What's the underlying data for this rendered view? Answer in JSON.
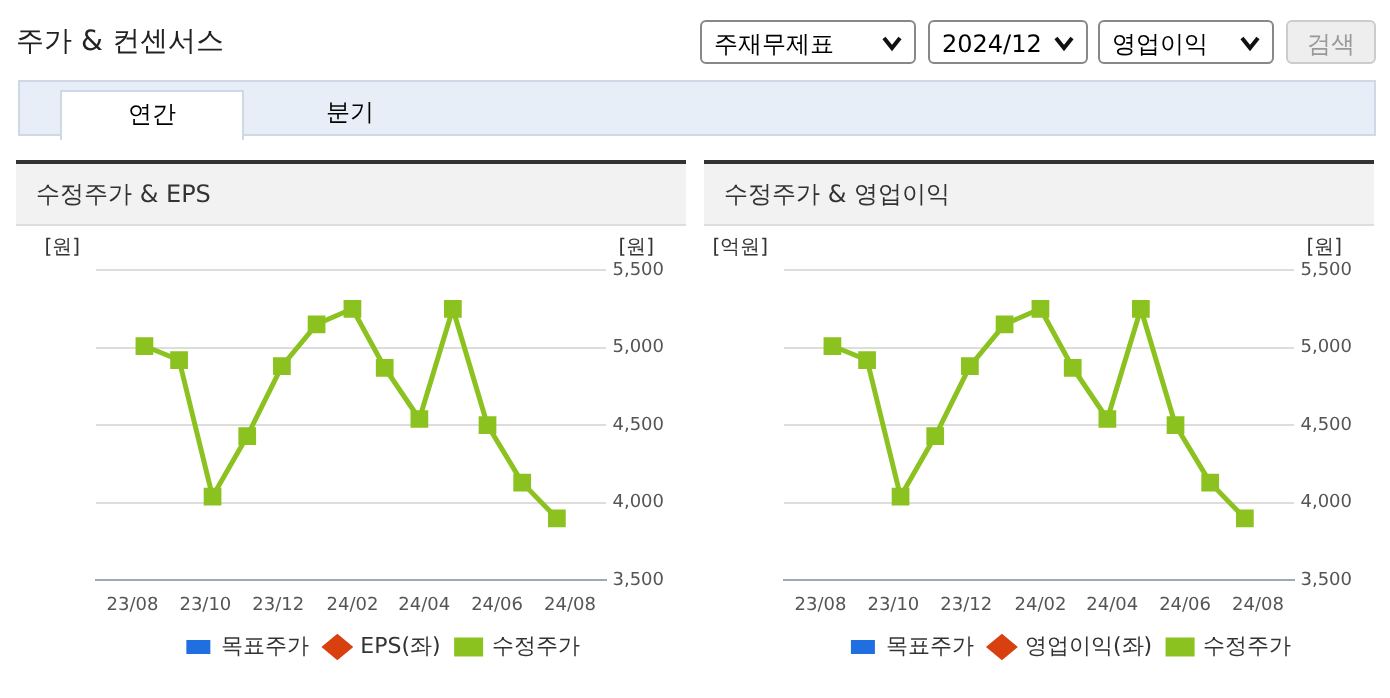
{
  "chart_data": [
    {
      "type": "other",
      "title": "주가 & 컨센서스",
      "annotations": [
        "주재무제표",
        "2024/12",
        "영업이익",
        "검색",
        "연간",
        "분기"
      ]
    },
    {
      "type": "line",
      "title": "수정주가 & EPS",
      "ylabel": "[원]",
      "y2label": "[원]",
      "x": [
        "2023-08-11",
        "2023-09-09",
        "2023-10-07",
        "2023-11-05",
        "2023-12-04",
        "2024-01-02",
        "2024-02-01",
        "2024-02-28",
        "2024-03-28",
        "2024-04-25",
        "2024-05-24",
        "2024-06-22",
        "2024-07-21"
      ],
      "xlim": [
        "2023-08",
        "2024-08"
      ],
      "xticks": [
        {
          "value": "2023-08",
          "label": "23/08"
        },
        {
          "value": "2023-10",
          "label": "23/10"
        },
        {
          "value": "2023-12",
          "label": "23/12"
        },
        {
          "value": "2024-02",
          "label": "24/02"
        },
        {
          "value": "2024-04",
          "label": "24/04"
        },
        {
          "value": "2024-06",
          "label": "24/06"
        },
        {
          "value": "2024-08",
          "label": "24/08"
        }
      ],
      "y2lim": [
        3500,
        5500
      ],
      "y2ticks": [
        {
          "value": 3500,
          "label": "3,500"
        },
        {
          "value": 4000,
          "label": "4,000"
        },
        {
          "value": 4500,
          "label": "4,500"
        },
        {
          "value": 5000,
          "label": "5,000"
        },
        {
          "value": 5500,
          "label": "5,500"
        }
      ],
      "grid": "y",
      "legend": "bottom",
      "marker": "square",
      "series": [
        {
          "name": "목표주가",
          "type": "bar",
          "color": "#1f6fe0",
          "values": [
            null,
            null,
            null,
            null,
            null,
            null,
            null,
            null,
            null,
            null,
            null,
            null,
            null
          ]
        },
        {
          "name": "EPS(좌)",
          "type": "line",
          "marker": "diamond",
          "color": "#d9400f",
          "values": [
            null,
            null,
            null,
            null,
            null,
            null,
            null,
            null,
            null,
            null,
            null,
            null,
            null
          ]
        },
        {
          "name": "수정주가",
          "type": "line",
          "axis": "y2",
          "color": "#8cc21f",
          "values": [
            5010,
            4920,
            4040,
            4430,
            4880,
            5150,
            5250,
            4870,
            4540,
            5250,
            4500,
            4130,
            3900
          ]
        }
      ]
    },
    {
      "type": "line",
      "title": "수정주가 & 영업이익",
      "ylabel": "[억원]",
      "y2label": "[원]",
      "x": [
        "2023-08-11",
        "2023-09-09",
        "2023-10-07",
        "2023-11-05",
        "2023-12-04",
        "2024-01-02",
        "2024-02-01",
        "2024-02-28",
        "2024-03-28",
        "2024-04-25",
        "2024-05-24",
        "2024-06-22",
        "2024-07-21"
      ],
      "xlim": [
        "2023-08",
        "2024-08"
      ],
      "xticks": [
        {
          "value": "2023-08",
          "label": "23/08"
        },
        {
          "value": "2023-10",
          "label": "23/10"
        },
        {
          "value": "2023-12",
          "label": "23/12"
        },
        {
          "value": "2024-02",
          "label": "24/02"
        },
        {
          "value": "2024-04",
          "label": "24/04"
        },
        {
          "value": "2024-06",
          "label": "24/06"
        },
        {
          "value": "2024-08",
          "label": "24/08"
        }
      ],
      "y2lim": [
        3500,
        5500
      ],
      "y2ticks": [
        {
          "value": 3500,
          "label": "3,500"
        },
        {
          "value": 4000,
          "label": "4,000"
        },
        {
          "value": 4500,
          "label": "4,500"
        },
        {
          "value": 5000,
          "label": "5,000"
        },
        {
          "value": 5500,
          "label": "5,500"
        }
      ],
      "grid": "y",
      "legend": "bottom",
      "marker": "square",
      "series": [
        {
          "name": "목표주가",
          "type": "bar",
          "color": "#1f6fe0",
          "values": [
            null,
            null,
            null,
            null,
            null,
            null,
            null,
            null,
            null,
            null,
            null,
            null,
            null
          ]
        },
        {
          "name": "영업이익(좌)",
          "type": "line",
          "marker": "diamond",
          "color": "#d9400f",
          "values": [
            null,
            null,
            null,
            null,
            null,
            null,
            null,
            null,
            null,
            null,
            null,
            null,
            null
          ]
        },
        {
          "name": "수정주가",
          "type": "line",
          "axis": "y2",
          "color": "#8cc21f",
          "values": [
            5010,
            4920,
            4040,
            4430,
            4880,
            5150,
            5250,
            4870,
            4540,
            5250,
            4500,
            4130,
            3900
          ]
        }
      ]
    }
  ]
}
